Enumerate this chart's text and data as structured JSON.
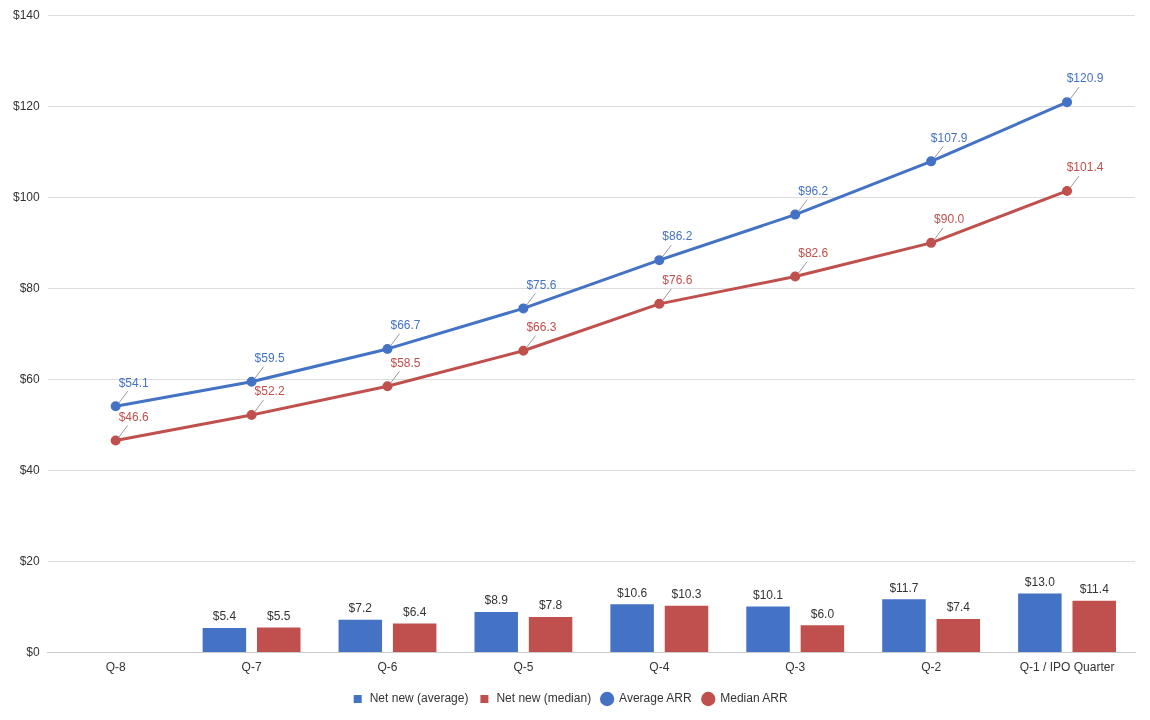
{
  "chart_data": {
    "type": "bar",
    "categories": [
      "Q-8",
      "Q-7",
      "Q-6",
      "Q-5",
      "Q-4",
      "Q-3",
      "Q-2",
      "Q-1 / IPO Quarter"
    ],
    "series": [
      {
        "name": "Net new (average)",
        "color": "#4472c4",
        "values": [
          null,
          5.4,
          7.2,
          8.9,
          10.6,
          10.1,
          11.7,
          13.0
        ],
        "value_labels": [
          null,
          "$5.4",
          "$7.2",
          "$8.9",
          "$10.6",
          "$10.1",
          "$11.7",
          "$13.0"
        ]
      },
      {
        "name": "Net new (median)",
        "color": "#c0504d",
        "values": [
          null,
          5.5,
          6.4,
          7.8,
          10.3,
          6.0,
          7.4,
          11.4
        ],
        "value_labels": [
          null,
          "$5.5",
          "$6.4",
          "$7.8",
          "$10.3",
          "$6.0",
          "$7.4",
          "$11.4"
        ]
      },
      {
        "name": "Average ARR",
        "type": "line",
        "color": "#4472c4",
        "values": [
          54.1,
          59.5,
          66.7,
          75.6,
          86.2,
          96.2,
          107.9,
          120.9
        ],
        "value_labels": [
          "$54.1",
          "$59.5",
          "$66.7",
          "$75.6",
          "$86.2",
          "$96.2",
          "$107.9",
          "$120.9"
        ]
      },
      {
        "name": "Median ARR",
        "type": "line",
        "color": "#c0504d",
        "values": [
          46.6,
          52.2,
          58.5,
          66.3,
          76.6,
          82.6,
          90.0,
          101.4
        ],
        "value_labels": [
          "$46.6",
          "$52.2",
          "$58.5",
          "$66.3",
          "$76.6",
          "$82.6",
          "$90.0",
          "$101.4"
        ]
      }
    ],
    "ylim": [
      0,
      140
    ],
    "yticks": [
      {
        "value": 0,
        "label": "$0"
      },
      {
        "value": 20,
        "label": "$20"
      },
      {
        "value": 40,
        "label": "$40"
      },
      {
        "value": 60,
        "label": "$60"
      },
      {
        "value": 80,
        "label": "$80"
      },
      {
        "value": 100,
        "label": "$100"
      },
      {
        "value": 120,
        "label": "$120"
      },
      {
        "value": 140,
        "label": "$140"
      }
    ],
    "grid": "y",
    "legend": "bottom",
    "marker": "circle",
    "line_style": "solid"
  }
}
